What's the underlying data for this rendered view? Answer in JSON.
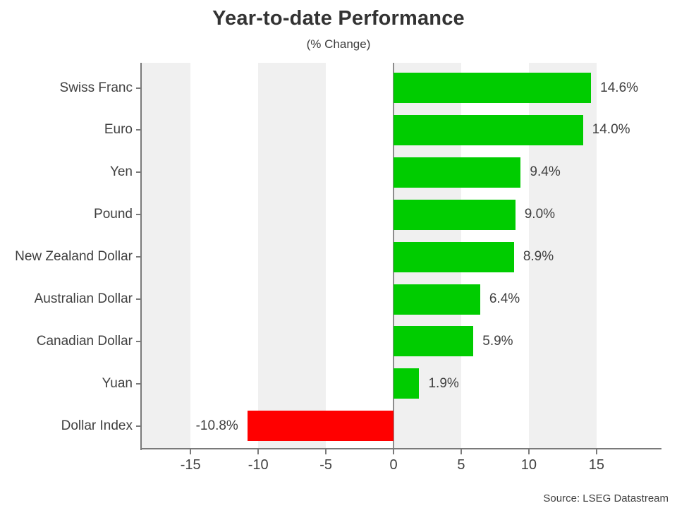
{
  "footer": {
    "source": "Source: LSEG Datastream"
  },
  "chart_data": {
    "type": "bar",
    "orientation": "horizontal",
    "title": "Year-to-date Performance",
    "subtitle": "(% Change)",
    "categories": [
      "Swiss Franc",
      "Euro",
      "Yen",
      "Pound",
      "New Zealand Dollar",
      "Australian Dollar",
      "Canadian Dollar",
      "Yuan",
      "Dollar Index"
    ],
    "values": [
      14.6,
      14.0,
      9.4,
      9.0,
      8.9,
      6.4,
      5.9,
      1.9,
      -10.8
    ],
    "value_labels": [
      "14.6%",
      "14.0%",
      "9.4%",
      "9.0%",
      "8.9%",
      "6.4%",
      "5.9%",
      "1.9%",
      "-10.8%"
    ],
    "x_ticks": [
      -15,
      -10,
      -5,
      0,
      5,
      10,
      15
    ],
    "x_tick_labels": [
      "-15",
      "-10",
      "-5",
      "0",
      "5",
      "10",
      "15"
    ],
    "xlim": [
      -18.66,
      19.75
    ],
    "xlabel": "",
    "ylabel": "",
    "legend_position": "none",
    "grid": "vertical-stripes",
    "stripe_bands": [
      [
        -20,
        -15
      ],
      [
        -10,
        -5
      ],
      [
        0,
        5
      ],
      [
        10,
        15
      ]
    ],
    "positive_color": "#00cc00",
    "negative_color": "#ff0000",
    "stripe_color": "#f0f0f0",
    "axis_color": "#7a7a7a",
    "text_color": "#404040"
  }
}
